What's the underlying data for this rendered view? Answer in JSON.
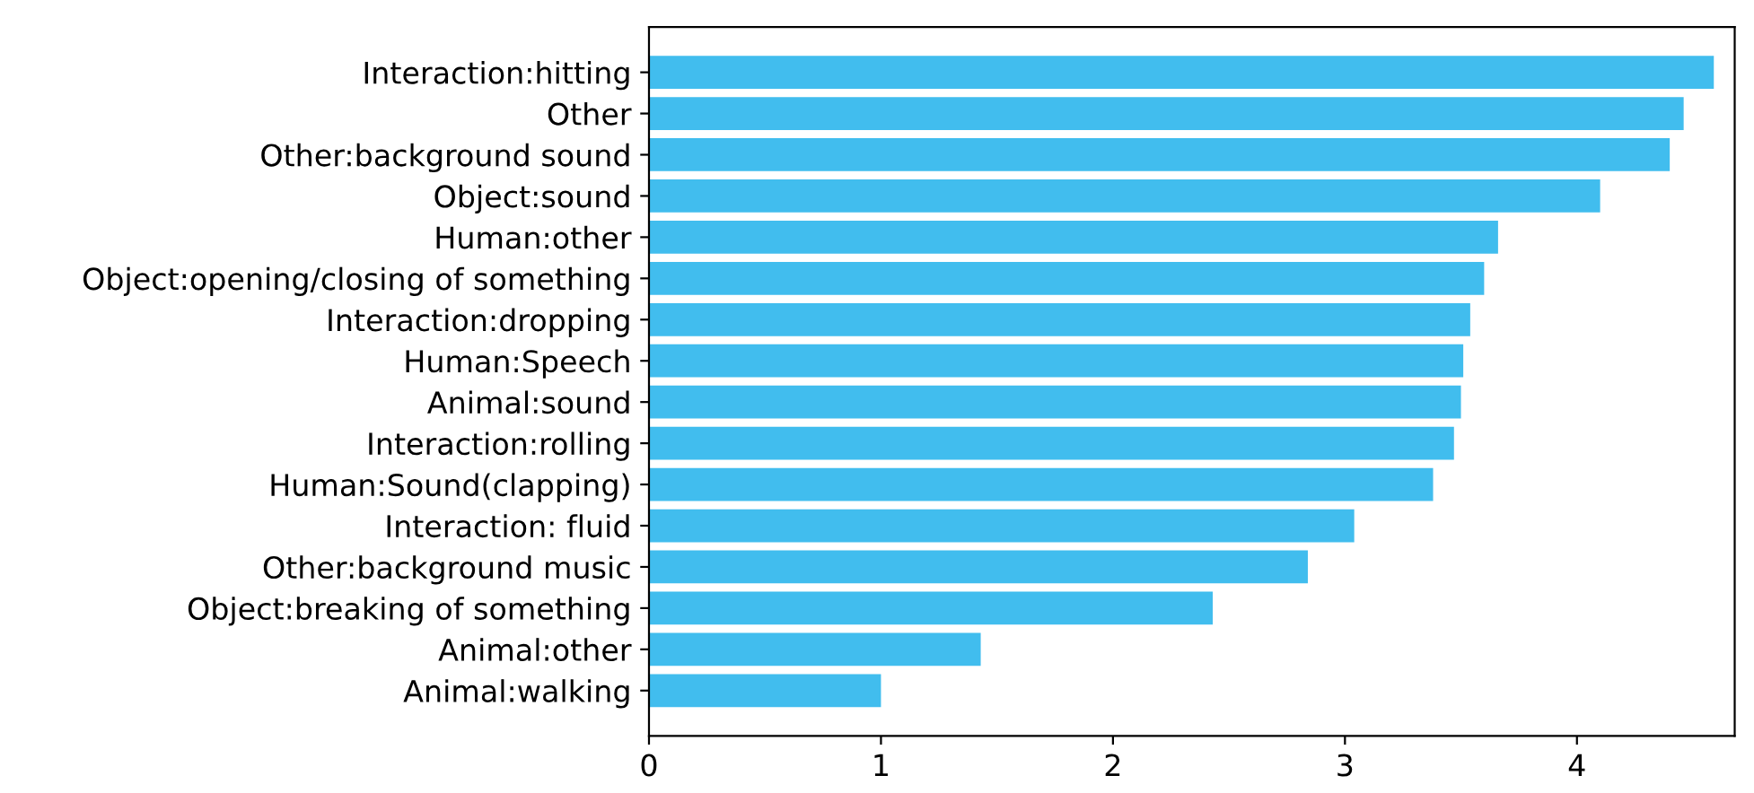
{
  "chart_data": {
    "type": "bar",
    "orientation": "horizontal",
    "categories": [
      "Interaction:hitting",
      "Other",
      "Other:background sound",
      "Object:sound",
      "Human:other",
      "Object:opening/closing of something",
      "Interaction:dropping",
      "Human:Speech",
      "Animal:sound",
      "Interaction:rolling",
      "Human:Sound(clapping)",
      "Interaction: fluid",
      "Other:background music",
      "Object:breaking of something",
      "Animal:other",
      "Animal:walking"
    ],
    "values": [
      4.59,
      4.46,
      4.4,
      4.1,
      3.66,
      3.6,
      3.54,
      3.51,
      3.5,
      3.47,
      3.38,
      3.04,
      2.84,
      2.43,
      1.43,
      1.0
    ],
    "color": "#41bdee",
    "xlim": [
      0,
      4.68
    ],
    "xticks": [
      0,
      1,
      2,
      3,
      4
    ],
    "grid": false
  }
}
